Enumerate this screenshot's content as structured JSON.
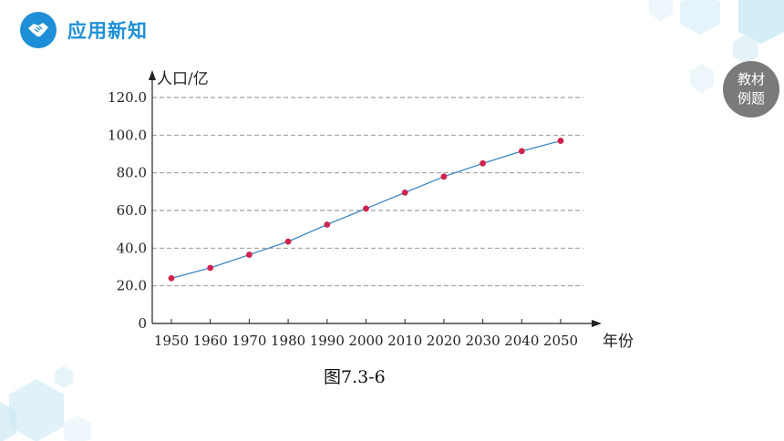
{
  "header": {
    "title": "应用新知",
    "icon": "handshake-icon",
    "accent": "#1e8fd6"
  },
  "badge": {
    "line1": "教材",
    "line2": "例题"
  },
  "chart_data": {
    "type": "line",
    "ylabel": "人口/亿",
    "xlabel": "年份",
    "caption": "图7.3-6",
    "ylim": [
      0,
      120
    ],
    "yticks": [
      "0",
      "20.0",
      "40.0",
      "60.0",
      "80.0",
      "100.0",
      "120.0"
    ],
    "grid": "horizontal dashed",
    "x": [
      1950,
      1960,
      1970,
      1980,
      1990,
      2000,
      2010,
      2020,
      2030,
      2040,
      2050
    ],
    "y": [
      24.0,
      29.5,
      36.5,
      43.5,
      52.5,
      61.0,
      69.5,
      78.0,
      85.0,
      91.5,
      97.0
    ],
    "line_color": "#3a88c8",
    "marker_color": "#d0234e"
  }
}
